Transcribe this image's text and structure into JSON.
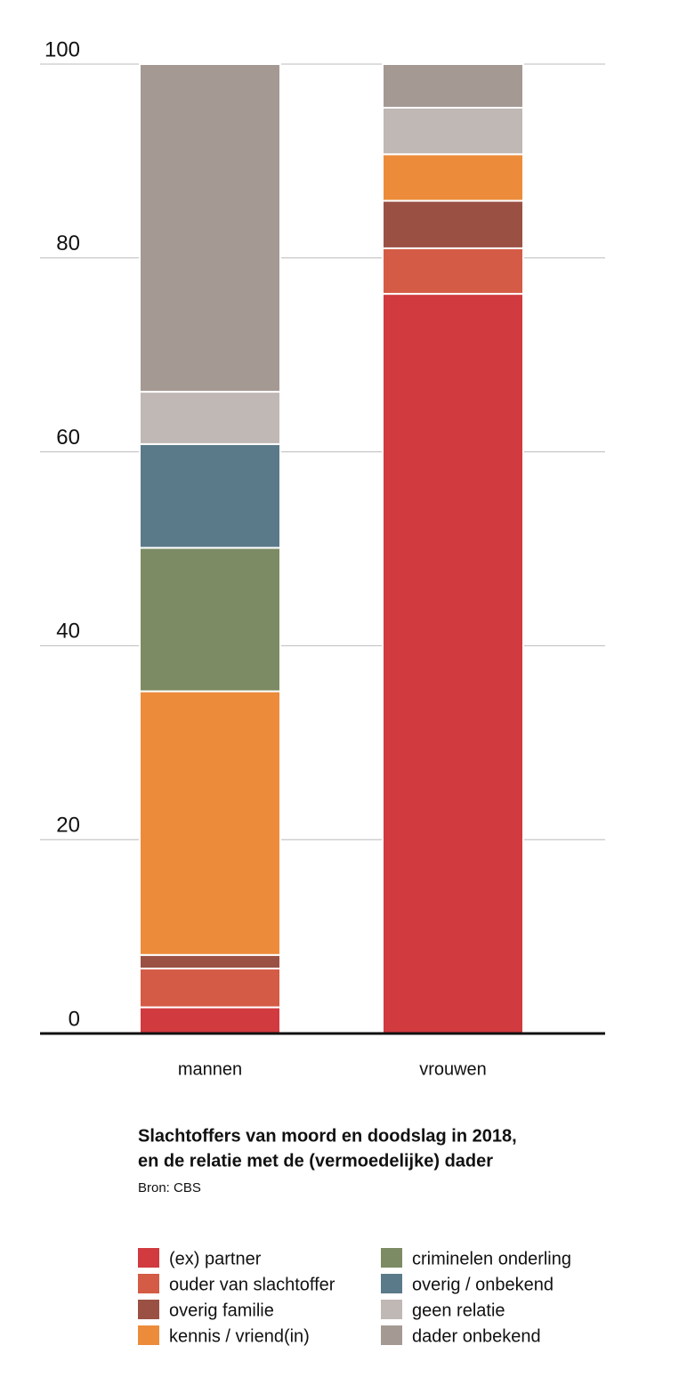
{
  "chart_data": {
    "type": "stacked_bar",
    "title_lines": [
      "Slachtoffers van moord en doodslag in 2018,",
      "en de relatie met de (vermoedelijke) dader"
    ],
    "source": "Bron: CBS",
    "categories": [
      "mannen",
      "vrouwen"
    ],
    "series": [
      {
        "name": "(ex) partner",
        "color": "#d13a3f",
        "values": [
          2.7,
          76.3
        ]
      },
      {
        "name": "ouder van slachtoffer",
        "color": "#d45b45",
        "values": [
          4.0,
          4.7
        ]
      },
      {
        "name": "overig familie",
        "color": "#9a5144",
        "values": [
          1.4,
          4.9
        ]
      },
      {
        "name": "kennis / vriend(in)",
        "color": "#ec8c3b",
        "values": [
          27.2,
          4.8
        ]
      },
      {
        "name": "criminelen onderling",
        "color": "#7d8b64",
        "values": [
          14.8,
          0
        ]
      },
      {
        "name": "overig / onbekend",
        "color": "#5a7a8a",
        "values": [
          10.7,
          0
        ]
      },
      {
        "name": "geen relatie",
        "color": "#bfb8b5",
        "values": [
          5.4,
          4.8
        ]
      },
      {
        "name": "dader onbekend",
        "color": "#a49993",
        "values": [
          33.8,
          4.5
        ]
      }
    ],
    "ylim": [
      0,
      100
    ],
    "yticks": [
      0,
      20,
      40,
      60,
      80,
      100
    ],
    "grid": true
  }
}
